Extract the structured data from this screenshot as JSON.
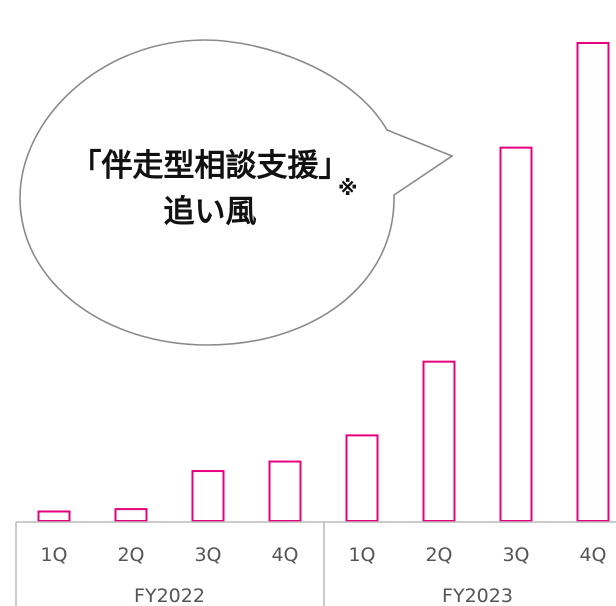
{
  "callout": {
    "line1": "「伴走型相談支援」",
    "line2": "追い風",
    "note_mark": "※"
  },
  "colors": {
    "bar_stroke": "#e6007e",
    "axis": "#bbbbbb",
    "bubble_stroke": "#8a8a8a",
    "tick_text": "#555555"
  },
  "chart_data": {
    "type": "bar",
    "categories": [
      "1Q",
      "2Q",
      "3Q",
      "4Q",
      "1Q",
      "2Q",
      "3Q",
      "4Q"
    ],
    "groups": [
      {
        "label": "FY2022",
        "count": 4
      },
      {
        "label": "FY2023",
        "count": 4
      }
    ],
    "values": [
      2,
      2.5,
      10.5,
      12.5,
      18,
      33.5,
      78.5,
      100.5
    ],
    "ylim": [
      0,
      100
    ],
    "title": "",
    "xlabel": "",
    "ylabel": "",
    "grid": false,
    "y_axis_shown": false
  }
}
